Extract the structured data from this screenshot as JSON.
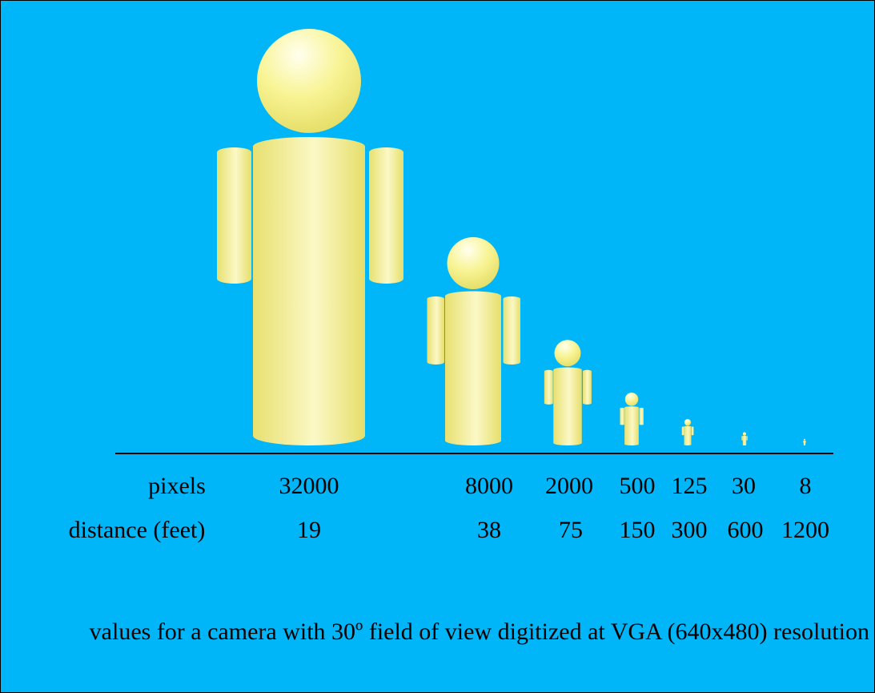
{
  "rows": [
    {
      "label": "pixels",
      "values": [
        32000,
        8000,
        2000,
        500,
        125,
        30,
        8
      ]
    },
    {
      "label": "distance (feet)",
      "values": [
        19,
        38,
        75,
        150,
        300,
        600,
        1200
      ]
    }
  ],
  "caption": "values for a camera with 30º field of view digitized at VGA (640x480) resolution"
}
